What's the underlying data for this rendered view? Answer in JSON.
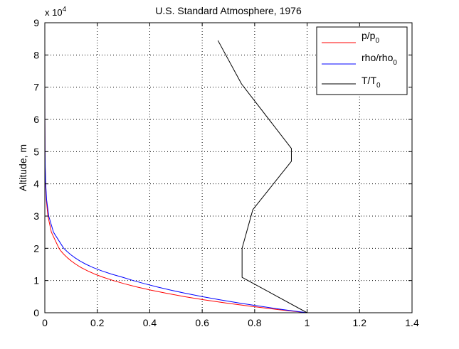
{
  "chart_data": {
    "type": "line",
    "title": "U.S. Standard Atmosphere, 1976",
    "xlabel": "",
    "ylabel": "Altitude, m",
    "xlim": [
      0,
      1.4
    ],
    "ylim": [
      0,
      90000
    ],
    "x_ticks": [
      0,
      0.2,
      0.4,
      0.6,
      0.8,
      1,
      1.2,
      1.4
    ],
    "x_tick_labels": [
      "0",
      "0.2",
      "0.4",
      "0.6",
      "0.8",
      "1",
      "1.2",
      "1.4"
    ],
    "y_ticks": [
      0,
      10000,
      20000,
      30000,
      40000,
      50000,
      60000,
      70000,
      80000,
      90000
    ],
    "y_tick_labels": [
      "0",
      "1",
      "2",
      "3",
      "4",
      "5",
      "6",
      "7",
      "8",
      "9"
    ],
    "y_exponent_base": "x 10",
    "y_exponent_power": "4",
    "grid": true,
    "legend_position": "top-right",
    "series": [
      {
        "name": "p/p",
        "name_subscript": "0",
        "color": "#ff0000",
        "points": [
          [
            1.0,
            0
          ],
          [
            0.887,
            1000
          ],
          [
            0.785,
            2000
          ],
          [
            0.692,
            3000
          ],
          [
            0.608,
            4000
          ],
          [
            0.533,
            5000
          ],
          [
            0.466,
            6000
          ],
          [
            0.405,
            7000
          ],
          [
            0.351,
            8000
          ],
          [
            0.303,
            9000
          ],
          [
            0.261,
            10000
          ],
          [
            0.223,
            11000
          ],
          [
            0.19,
            12000
          ],
          [
            0.163,
            13000
          ],
          [
            0.139,
            14000
          ],
          [
            0.119,
            15000
          ],
          [
            0.102,
            16000
          ],
          [
            0.087,
            17000
          ],
          [
            0.074,
            18000
          ],
          [
            0.063,
            19000
          ],
          [
            0.054,
            20000
          ],
          [
            0.025,
            25000
          ],
          [
            0.0118,
            30000
          ],
          [
            0.0057,
            35000
          ],
          [
            0.0028,
            40000
          ],
          [
            0.0014,
            45000
          ],
          [
            0.0008,
            50000
          ],
          [
            0.0002,
            60000
          ],
          [
            5e-05,
            70000
          ],
          [
            1e-05,
            80000
          ],
          [
            4e-06,
            84000
          ]
        ]
      },
      {
        "name": "rho/rho",
        "name_subscript": "0",
        "color": "#0000ff",
        "points": [
          [
            1.0,
            0
          ],
          [
            0.907,
            1000
          ],
          [
            0.822,
            2000
          ],
          [
            0.742,
            3000
          ],
          [
            0.669,
            4000
          ],
          [
            0.601,
            5000
          ],
          [
            0.538,
            6000
          ],
          [
            0.481,
            7000
          ],
          [
            0.429,
            8000
          ],
          [
            0.381,
            9000
          ],
          [
            0.337,
            10000
          ],
          [
            0.297,
            11000
          ],
          [
            0.254,
            12000
          ],
          [
            0.217,
            13000
          ],
          [
            0.185,
            14000
          ],
          [
            0.158,
            15000
          ],
          [
            0.135,
            16000
          ],
          [
            0.116,
            17000
          ],
          [
            0.099,
            18000
          ],
          [
            0.085,
            19000
          ],
          [
            0.072,
            20000
          ],
          [
            0.033,
            25000
          ],
          [
            0.0149,
            30000
          ],
          [
            0.0069,
            35000
          ],
          [
            0.0033,
            40000
          ],
          [
            0.0016,
            45000
          ],
          [
            0.0008,
            50000
          ],
          [
            0.00025,
            60000
          ],
          [
            7e-05,
            70000
          ],
          [
            1.5e-05,
            80000
          ],
          [
            6e-06,
            84000
          ]
        ]
      },
      {
        "name": "T/T",
        "name_subscript": "0",
        "color": "#000000",
        "points": [
          [
            1.0,
            0
          ],
          [
            0.752,
            11000
          ],
          [
            0.752,
            20000
          ],
          [
            0.793,
            32000
          ],
          [
            0.94,
            47000
          ],
          [
            0.94,
            51000
          ],
          [
            0.75,
            71000
          ],
          [
            0.66,
            84500
          ]
        ]
      }
    ]
  }
}
